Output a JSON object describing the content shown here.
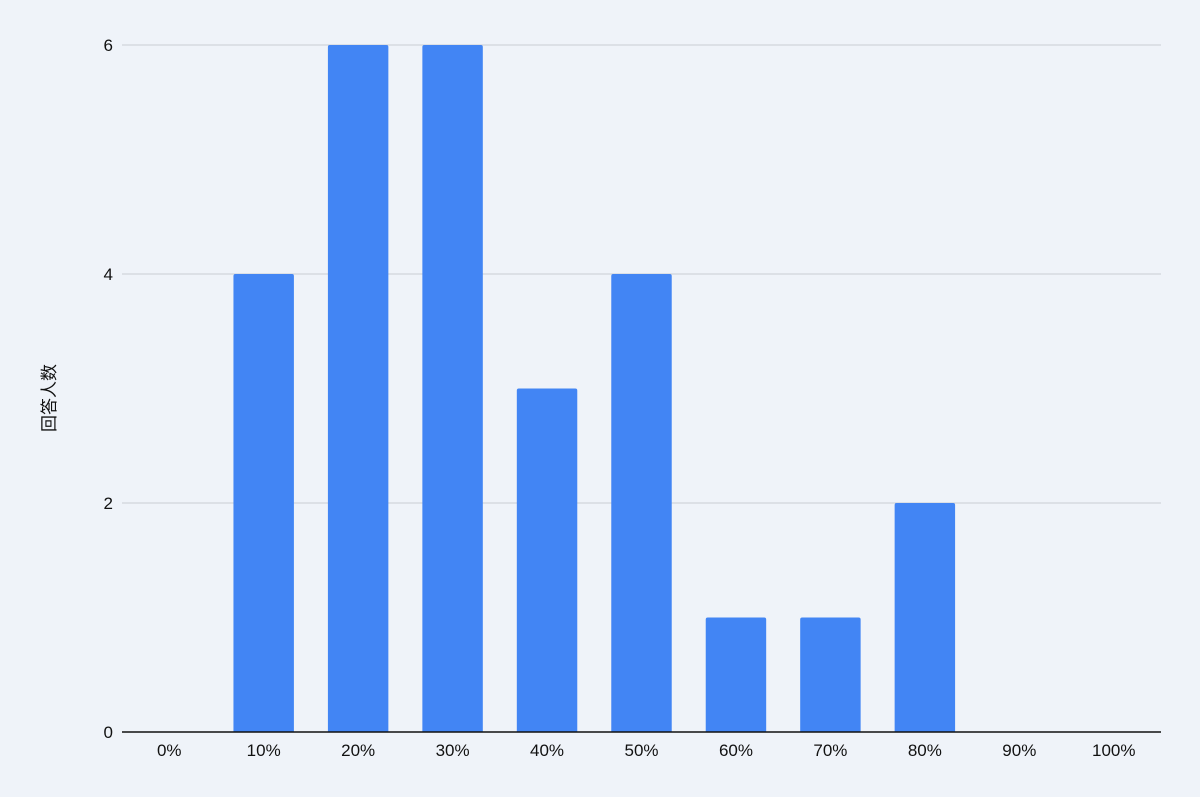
{
  "chart_data": {
    "type": "bar",
    "categories": [
      "0%",
      "10%",
      "20%",
      "30%",
      "40%",
      "50%",
      "60%",
      "70%",
      "80%",
      "90%",
      "100%"
    ],
    "values": [
      0,
      4,
      6,
      6,
      3,
      4,
      1,
      1,
      2,
      0,
      0
    ],
    "title": "",
    "xlabel": "",
    "ylabel": "回答人数",
    "ylim": [
      0,
      6
    ],
    "yticks": [
      0,
      2,
      4,
      6
    ],
    "grid": true,
    "legend": "none",
    "colors": {
      "bar": "#4285f4",
      "grid": "#c8ccd2",
      "axis": "#111111",
      "background": "#eff3f9"
    }
  }
}
